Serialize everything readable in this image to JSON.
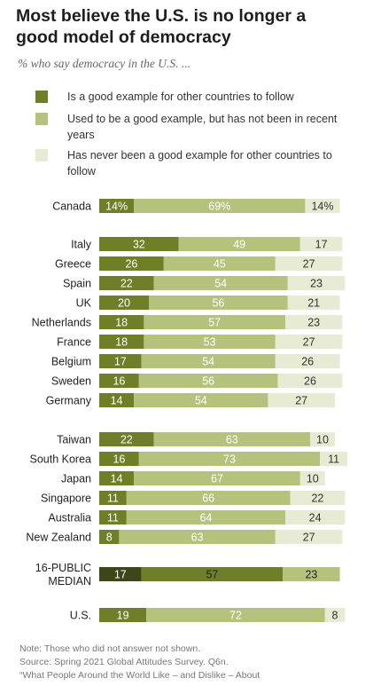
{
  "title_line1": "Most believe the U.S. is no longer a",
  "title_line2": "good model of democracy",
  "subtitle": "% who say democracy in the U.S. ...",
  "footer": {
    "note": "Note: Those who did not answer not shown.",
    "source": "Source: Spring 2021 Global Attitudes Survey. Q6n.",
    "report": "“What People Around the World Like – and Dislike – About"
  },
  "chart_data": {
    "type": "bar",
    "stacked": true,
    "orientation": "horizontal",
    "legend": [
      {
        "label": "Is a good example for other countries to follow",
        "color": "#6f7f27"
      },
      {
        "label": "Used to be a good example, but has not been in recent years",
        "color": "#b5c27c"
      },
      {
        "label": "Has never been a good example for other countries to follow",
        "color": "#e7ebd4"
      }
    ],
    "series": [
      {
        "name": "Is a good example for other countries to follow",
        "color": "#6f7f27"
      },
      {
        "name": "Used to be a good example, but has not been in recent years",
        "color": "#b5c27c"
      },
      {
        "name": "Has never been a good example for other countries to follow",
        "color": "#e7ebd4"
      }
    ],
    "categories": [
      "Canada",
      "Italy",
      "Greece",
      "Spain",
      "UK",
      "Netherlands",
      "France",
      "Belgium",
      "Sweden",
      "Germany",
      "Taiwan",
      "South Korea",
      "Japan",
      "Singapore",
      "Australia",
      "New Zealand",
      "16-PUBLIC MEDIAN",
      "U.S."
    ],
    "rows": [
      {
        "label": "Canada",
        "values": [
          14,
          69,
          14
        ],
        "labels": [
          "14%",
          "69%",
          "14%"
        ]
      },
      {
        "label": "Italy",
        "values": [
          32,
          49,
          17
        ],
        "labels": [
          "32",
          "49",
          "17"
        ]
      },
      {
        "label": "Greece",
        "values": [
          26,
          45,
          27
        ],
        "labels": [
          "26",
          "45",
          "27"
        ]
      },
      {
        "label": "Spain",
        "values": [
          22,
          54,
          23
        ],
        "labels": [
          "22",
          "54",
          "23"
        ]
      },
      {
        "label": "UK",
        "values": [
          20,
          56,
          21
        ],
        "labels": [
          "20",
          "56",
          "21"
        ]
      },
      {
        "label": "Netherlands",
        "values": [
          18,
          57,
          23
        ],
        "labels": [
          "18",
          "57",
          "23"
        ]
      },
      {
        "label": "France",
        "values": [
          18,
          53,
          27
        ],
        "labels": [
          "18",
          "53",
          "27"
        ]
      },
      {
        "label": "Belgium",
        "values": [
          17,
          54,
          26
        ],
        "labels": [
          "17",
          "54",
          "26"
        ]
      },
      {
        "label": "Sweden",
        "values": [
          16,
          56,
          26
        ],
        "labels": [
          "16",
          "56",
          "26"
        ]
      },
      {
        "label": "Germany",
        "values": [
          14,
          54,
          27
        ],
        "labels": [
          "14",
          "54",
          "27"
        ]
      },
      {
        "label": "Taiwan",
        "values": [
          22,
          63,
          10
        ],
        "labels": [
          "22",
          "63",
          "10"
        ]
      },
      {
        "label": "South Korea",
        "values": [
          16,
          73,
          11
        ],
        "labels": [
          "16",
          "73",
          "11"
        ]
      },
      {
        "label": "Japan",
        "values": [
          14,
          67,
          10
        ],
        "labels": [
          "14",
          "67",
          "10"
        ]
      },
      {
        "label": "Singapore",
        "values": [
          11,
          66,
          22
        ],
        "labels": [
          "11",
          "66",
          "22"
        ]
      },
      {
        "label": "Australia",
        "values": [
          11,
          64,
          24
        ],
        "labels": [
          "11",
          "64",
          "24"
        ]
      },
      {
        "label": "New Zealand",
        "values": [
          8,
          63,
          27
        ],
        "labels": [
          "8",
          "63",
          "27"
        ]
      },
      {
        "label": "16-PUBLIC MEDIAN",
        "label_lines": [
          "16-PUBLIC",
          "MEDIAN"
        ],
        "values": [
          17,
          57,
          23
        ],
        "labels": [
          "17",
          "57",
          "23"
        ],
        "median": true,
        "colors": [
          "#3d4619",
          "#6f7f27",
          "#b5c27c"
        ]
      },
      {
        "label": "U.S.",
        "values": [
          19,
          72,
          8
        ],
        "labels": [
          "19",
          "72",
          "8"
        ]
      }
    ],
    "xlim": [
      0,
      100
    ],
    "grid": false
  }
}
